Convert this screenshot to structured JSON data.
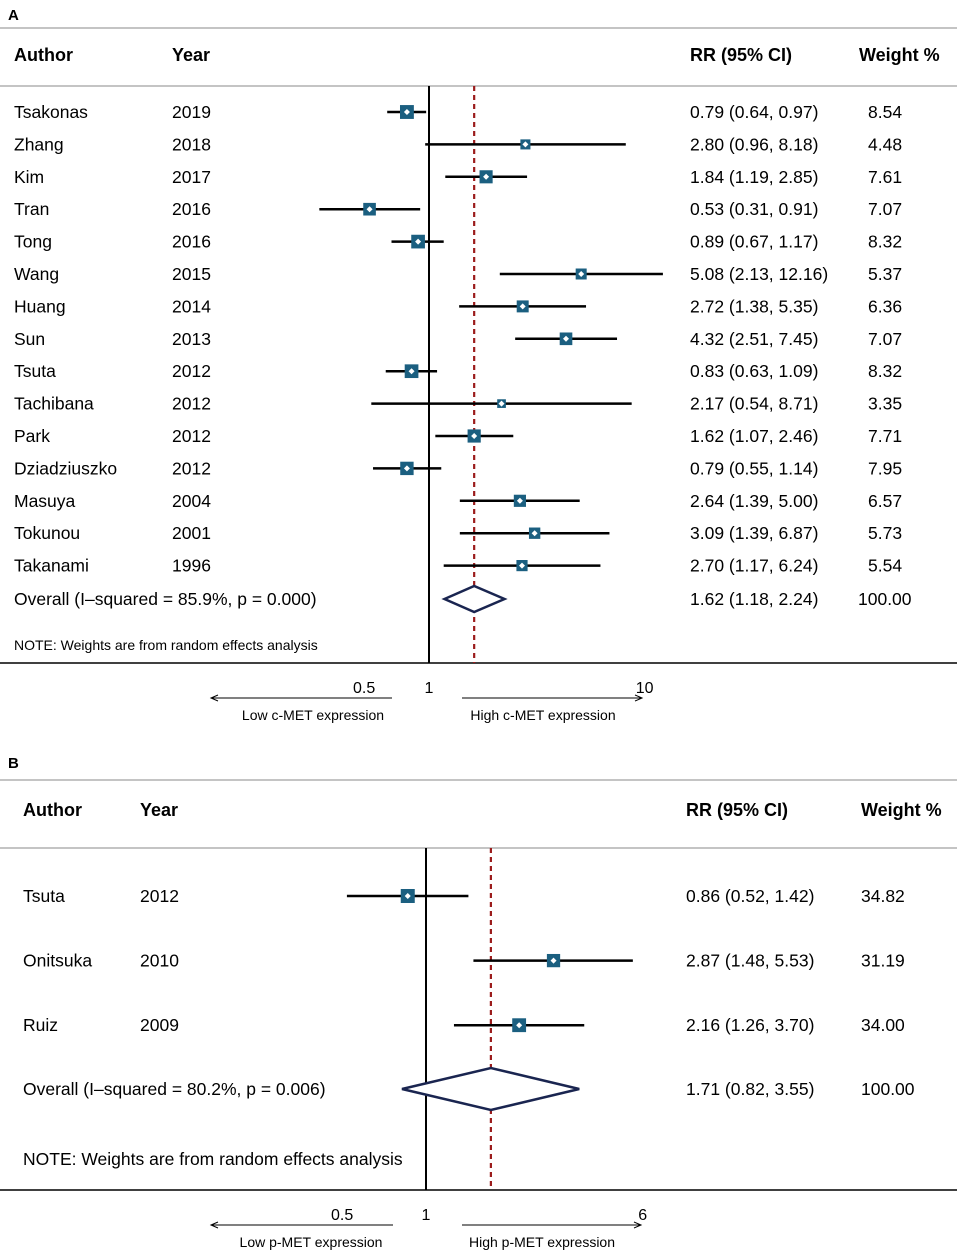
{
  "chart_data": [
    {
      "panel": "A",
      "type": "forest",
      "headers": {
        "author": "Author",
        "year": "Year",
        "rr": "RR (95% CI)",
        "weight": "Weight %"
      },
      "studies": [
        {
          "author": "Tsakonas",
          "year": "2019",
          "rr": 0.79,
          "lo": 0.64,
          "hi": 0.97,
          "rr_text": "0.79 (0.64, 0.97)",
          "weight": "8.54"
        },
        {
          "author": "Zhang",
          "year": "2018",
          "rr": 2.8,
          "lo": 0.96,
          "hi": 8.18,
          "rr_text": "2.80 (0.96, 8.18)",
          "weight": "4.48"
        },
        {
          "author": "Kim",
          "year": "2017",
          "rr": 1.84,
          "lo": 1.19,
          "hi": 2.85,
          "rr_text": "1.84 (1.19, 2.85)",
          "weight": "7.61"
        },
        {
          "author": "Tran",
          "year": "2016",
          "rr": 0.53,
          "lo": 0.31,
          "hi": 0.91,
          "rr_text": "0.53 (0.31, 0.91)",
          "weight": "7.07"
        },
        {
          "author": "Tong",
          "year": "2016",
          "rr": 0.89,
          "lo": 0.67,
          "hi": 1.17,
          "rr_text": "0.89 (0.67, 1.17)",
          "weight": "8.32"
        },
        {
          "author": "Wang",
          "year": "2015",
          "rr": 5.08,
          "lo": 2.13,
          "hi": 12.16,
          "rr_text": "5.08 (2.13, 12.16)",
          "weight": "5.37"
        },
        {
          "author": "Huang",
          "year": "2014",
          "rr": 2.72,
          "lo": 1.38,
          "hi": 5.35,
          "rr_text": "2.72 (1.38, 5.35)",
          "weight": "6.36"
        },
        {
          "author": "Sun",
          "year": "2013",
          "rr": 4.32,
          "lo": 2.51,
          "hi": 7.45,
          "rr_text": "4.32 (2.51, 7.45)",
          "weight": "7.07"
        },
        {
          "author": "Tsuta",
          "year": "2012",
          "rr": 0.83,
          "lo": 0.63,
          "hi": 1.09,
          "rr_text": "0.83 (0.63, 1.09)",
          "weight": "8.32"
        },
        {
          "author": "Tachibana",
          "year": "2012",
          "rr": 2.17,
          "lo": 0.54,
          "hi": 8.71,
          "rr_text": "2.17 (0.54, 8.71)",
          "weight": "3.35"
        },
        {
          "author": "Park",
          "year": "2012",
          "rr": 1.62,
          "lo": 1.07,
          "hi": 2.46,
          "rr_text": "1.62 (1.07, 2.46)",
          "weight": "7.71"
        },
        {
          "author": "Dziadziuszko",
          "year": "2012",
          "rr": 0.79,
          "lo": 0.55,
          "hi": 1.14,
          "rr_text": "0.79 (0.55, 1.14)",
          "weight": "7.95"
        },
        {
          "author": "Masuya",
          "year": "2004",
          "rr": 2.64,
          "lo": 1.39,
          "hi": 5.0,
          "rr_text": "2.64 (1.39, 5.00)",
          "weight": "6.57"
        },
        {
          "author": "Tokunou",
          "year": "2001",
          "rr": 3.09,
          "lo": 1.39,
          "hi": 6.87,
          "rr_text": "3.09 (1.39, 6.87)",
          "weight": "5.73"
        },
        {
          "author": "Takanami",
          "year": "1996",
          "rr": 2.7,
          "lo": 1.17,
          "hi": 6.24,
          "rr_text": "2.70 (1.17, 6.24)",
          "weight": "5.54"
        }
      ],
      "overall": {
        "label": "Overall  (I–squared = 85.9%, p = 0.000)",
        "rr": 1.62,
        "lo": 1.18,
        "hi": 2.24,
        "rr_text": "1.62 (1.18, 2.24)",
        "weight": "100.00"
      },
      "note": "NOTE: Weights are from random effects analysis",
      "x_scale": "log",
      "xlim": [
        0.25,
        13.5
      ],
      "ticks": [
        {
          "value": 0.5,
          "label": "0.5"
        },
        {
          "value": 1,
          "label": "1"
        },
        {
          "value": 10,
          "label": "10"
        }
      ],
      "low_label": "Low c-MET expression",
      "high_label": "High c-MET expression"
    },
    {
      "panel": "B",
      "type": "forest",
      "headers": {
        "author": "Author",
        "year": "Year",
        "rr": "RR (95% CI)",
        "weight": "Weight %"
      },
      "studies": [
        {
          "author": "Tsuta",
          "year": "2012",
          "rr": 0.86,
          "lo": 0.52,
          "hi": 1.42,
          "rr_text": "0.86 (0.52, 1.42)",
          "weight": "34.82"
        },
        {
          "author": "Onitsuka",
          "year": "2010",
          "rr": 2.87,
          "lo": 1.48,
          "hi": 5.53,
          "rr_text": "2.87 (1.48, 5.53)",
          "weight": "31.19"
        },
        {
          "author": "Ruiz",
          "year": "2009",
          "rr": 2.16,
          "lo": 1.26,
          "hi": 3.7,
          "rr_text": "2.16 (1.26, 3.70)",
          "weight": "34.00"
        }
      ],
      "overall": {
        "label": "Overall  (I–squared = 80.2%, p = 0.006)",
        "rr": 1.71,
        "lo": 0.82,
        "hi": 3.55,
        "rr_text": "1.71 (0.82, 3.55)",
        "weight": "100.00"
      },
      "note": "NOTE: Weights are from random effects analysis",
      "x_scale": "log",
      "xlim": [
        0.25,
        6.5
      ],
      "ticks": [
        {
          "value": 0.5,
          "label": "0.5"
        },
        {
          "value": 1,
          "label": "1"
        },
        {
          "value": 6,
          "label": "6"
        }
      ],
      "low_label": "Low p-MET expression",
      "high_label": "High p-MET expression"
    }
  ],
  "colors": {
    "marker": "#1b5f80",
    "ci_line": "#000000",
    "diamond": "#1a2550",
    "ref_line": "#9b1b1b",
    "rule": "#b0b0b0"
  }
}
